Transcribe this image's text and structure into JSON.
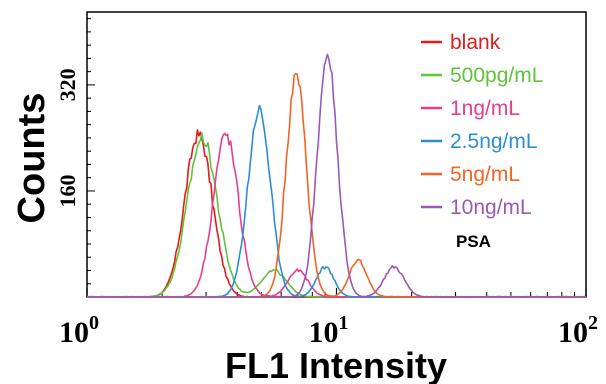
{
  "chart_data": {
    "type": "line",
    "title": "",
    "xlabel": "FL1 Intensity",
    "ylabel": "Counts",
    "x_scale": "log",
    "xlim": [
      1,
      100
    ],
    "ylim": [
      0,
      430
    ],
    "x_ticks": [
      {
        "value": 1,
        "base": "10",
        "exp": "0"
      },
      {
        "value": 10,
        "base": "10",
        "exp": "1"
      },
      {
        "value": 100,
        "base": "10",
        "exp": "2"
      }
    ],
    "y_ticks": [
      {
        "value": 160,
        "label": "160"
      },
      {
        "value": 320,
        "label": "320"
      }
    ],
    "legend_position": "top-right",
    "annotation": "PSA",
    "grid": false,
    "series": [
      {
        "name": "blank",
        "color": "#e41a1c",
        "peaks": [
          {
            "center": 2.8,
            "height": 245,
            "width": 0.055
          }
        ]
      },
      {
        "name": "500pg/mL",
        "color": "#5fc43a",
        "peaks": [
          {
            "center": 2.9,
            "height": 240,
            "width": 0.06
          },
          {
            "center": 5.6,
            "height": 40,
            "width": 0.05
          }
        ]
      },
      {
        "name": "1ng/mL",
        "color": "#e83e8c",
        "peaks": [
          {
            "center": 3.6,
            "height": 245,
            "width": 0.05
          },
          {
            "center": 7.0,
            "height": 40,
            "width": 0.04
          }
        ]
      },
      {
        "name": "2.5ng/mL",
        "color": "#2b8fd6",
        "peaks": [
          {
            "center": 4.9,
            "height": 283,
            "width": 0.045
          },
          {
            "center": 9.0,
            "height": 45,
            "width": 0.035
          }
        ]
      },
      {
        "name": "5ng/mL",
        "color": "#f26522",
        "peaks": [
          {
            "center": 6.9,
            "height": 335,
            "width": 0.04
          },
          {
            "center": 12.2,
            "height": 55,
            "width": 0.035
          }
        ]
      },
      {
        "name": "10ng/mL",
        "color": "#9b59b6",
        "peaks": [
          {
            "center": 9.2,
            "height": 365,
            "width": 0.04
          },
          {
            "center": 17.0,
            "height": 45,
            "width": 0.04
          }
        ]
      }
    ]
  }
}
